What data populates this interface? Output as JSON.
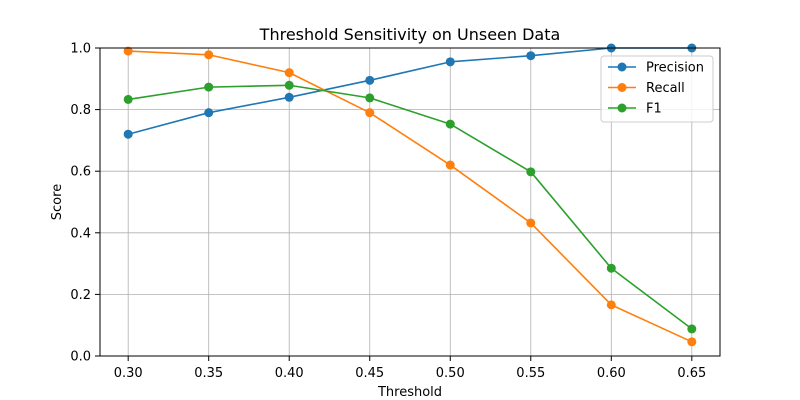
{
  "chart_data": {
    "type": "line",
    "title": "Threshold Sensitivity on Unseen Data",
    "xlabel": "Threshold",
    "ylabel": "Score",
    "x": [
      0.3,
      0.35,
      0.4,
      0.45,
      0.5,
      0.55,
      0.6,
      0.65
    ],
    "x_tick_labels": [
      "0.30",
      "0.35",
      "0.40",
      "0.45",
      "0.50",
      "0.55",
      "0.60",
      "0.65"
    ],
    "y_tick_values": [
      0.0,
      0.2,
      0.4,
      0.6,
      0.8,
      1.0
    ],
    "y_tick_labels": [
      "0.0",
      "0.2",
      "0.4",
      "0.6",
      "0.8",
      "1.0"
    ],
    "xlim": [
      0.2825,
      0.6675
    ],
    "ylim": [
      0.0,
      1.0
    ],
    "grid": true,
    "legend_position": "top-right",
    "series": [
      {
        "name": "Precision",
        "color": "#1f77b4",
        "values": [
          0.72,
          0.79,
          0.84,
          0.895,
          0.955,
          0.975,
          1.0,
          1.0
        ]
      },
      {
        "name": "Recall",
        "color": "#ff7f0e",
        "values": [
          0.99,
          0.978,
          0.92,
          0.79,
          0.62,
          0.432,
          0.166,
          0.046
        ]
      },
      {
        "name": "F1",
        "color": "#2ca02c",
        "values": [
          0.833,
          0.873,
          0.879,
          0.838,
          0.753,
          0.598,
          0.285,
          0.088
        ]
      }
    ]
  }
}
